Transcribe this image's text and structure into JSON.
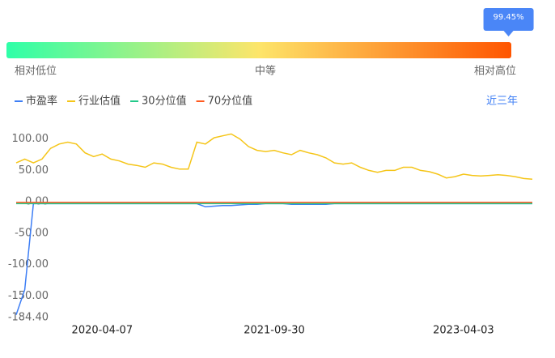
{
  "gauge": {
    "marker": {
      "value": 99.45,
      "label": "99.45%"
    },
    "labels": [
      "相对低位",
      "中等",
      "相对高位"
    ]
  },
  "range_button": "近三年",
  "chart_data": {
    "type": "line",
    "categories": [
      null,
      null,
      null,
      null,
      null,
      null,
      null,
      null,
      null,
      null,
      "2020-04-07",
      null,
      null,
      null,
      null,
      null,
      null,
      null,
      null,
      null,
      null,
      null,
      null,
      null,
      null,
      null,
      null,
      null,
      null,
      null,
      "2021-09-30",
      null,
      null,
      null,
      null,
      null,
      null,
      null,
      null,
      null,
      null,
      null,
      null,
      null,
      null,
      null,
      null,
      null,
      null,
      null,
      null,
      null,
      "2023-04-03",
      null,
      null,
      null,
      null,
      null,
      null,
      null,
      null
    ],
    "series": [
      {
        "name": "市盈率",
        "color": "#3d7ef5",
        "values": [
          -180,
          -140,
          -3,
          -3,
          -3,
          -3,
          -3,
          -3,
          -3,
          -3,
          -3,
          -3,
          -3,
          -3,
          -3,
          -3,
          -3,
          -3,
          -3,
          -3,
          -3,
          -3,
          -8,
          -7,
          -6,
          -6,
          -5,
          -4,
          -4,
          -3,
          -3,
          -3,
          -4,
          -4,
          -4,
          -4,
          -4,
          -3,
          -3,
          -3,
          -3,
          -3,
          -3,
          -3,
          -3,
          -3,
          -3,
          -3,
          -3,
          -3,
          -3,
          -3,
          -3,
          -3,
          -3,
          -3,
          -3,
          -3,
          -3,
          -3,
          -3
        ]
      },
      {
        "name": "行业估值",
        "color": "#f5c518",
        "values": [
          62,
          68,
          62,
          68,
          85,
          92,
          95,
          92,
          78,
          72,
          76,
          68,
          65,
          60,
          58,
          55,
          62,
          60,
          55,
          52,
          52,
          95,
          92,
          102,
          105,
          108,
          100,
          88,
          82,
          80,
          82,
          78,
          75,
          82,
          78,
          75,
          70,
          62,
          60,
          62,
          55,
          50,
          47,
          50,
          50,
          55,
          55,
          50,
          48,
          44,
          38,
          40,
          44,
          42,
          41,
          42,
          43,
          42,
          40,
          37,
          36
        ]
      },
      {
        "name": "30分位值",
        "color": "#23c98a",
        "values": [
          -3,
          -3,
          -3,
          -3,
          -3,
          -3,
          -3,
          -3,
          -3,
          -3,
          -3,
          -3,
          -3,
          -3,
          -3,
          -3,
          -3,
          -3,
          -3,
          -3,
          -3,
          -3,
          -3,
          -3,
          -3,
          -3,
          -3,
          -3,
          -3,
          -3,
          -3,
          -3,
          -3,
          -3,
          -3,
          -3,
          -3,
          -3,
          -3,
          -3,
          -3,
          -3,
          -3,
          -3,
          -3,
          -3,
          -3,
          -3,
          -3,
          -3,
          -3,
          -3,
          -3,
          -3,
          -3,
          -3,
          -3,
          -3,
          -3,
          -3,
          -3
        ]
      },
      {
        "name": "70分位值",
        "color": "#ff5a1f",
        "values": [
          -1,
          -1,
          -1,
          -1,
          -1,
          -1,
          -1,
          -1,
          -1,
          -1,
          -1,
          -1,
          -1,
          -1,
          -1,
          -1,
          -1,
          -1,
          -1,
          -1,
          -1,
          -1,
          -1,
          -1,
          -1,
          -1,
          -1,
          -1,
          -1,
          -1,
          -1,
          -1,
          -1,
          -1,
          -1,
          -1,
          -1,
          -1,
          -1,
          -1,
          -1,
          -1,
          -1,
          -1,
          -1,
          -1,
          -1,
          -1,
          -1,
          -1,
          -1,
          -1,
          -1,
          -1,
          -1,
          -1,
          -1,
          -1,
          -1,
          -1,
          -1
        ]
      }
    ],
    "ylim": [
      -184.4,
      115
    ],
    "yticks": [
      {
        "value": 100,
        "label": "100.00"
      },
      {
        "value": 50,
        "label": "50.00"
      },
      {
        "value": 0,
        "label": "0.00"
      },
      {
        "value": -50,
        "label": "-50.00"
      },
      {
        "value": -100,
        "label": "-100.00"
      },
      {
        "value": -150,
        "label": "-150.00"
      },
      {
        "value": -184.4,
        "label": "-184.40"
      }
    ]
  }
}
